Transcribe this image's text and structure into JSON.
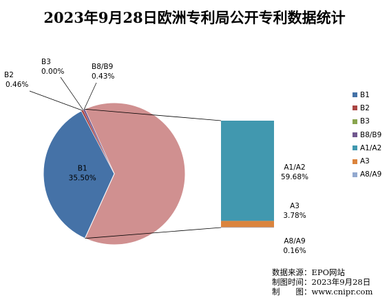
{
  "chart_data": {
    "type": "pie",
    "variant": "pie-of-bar",
    "title": "2023年9月28日欧洲专利局公开专利数据统计",
    "slices": [
      {
        "name": "B1",
        "value": 35.5,
        "label": "35.50%",
        "color": "#4572A7"
      },
      {
        "name": "B2",
        "value": 0.46,
        "label": "0.46%",
        "color": "#AA4643"
      },
      {
        "name": "B3",
        "value": 0.0,
        "label": "0.00%",
        "color": "#89A54E"
      },
      {
        "name": "B8/B9",
        "value": 0.43,
        "label": "0.43%",
        "color": "#71588F"
      }
    ],
    "grouped_slice": {
      "color": "#D09090"
    },
    "bar": [
      {
        "name": "A1/A2",
        "value": 59.68,
        "label": "59.68%",
        "color": "#4198AF"
      },
      {
        "name": "A3",
        "value": 3.78,
        "label": "3.78%",
        "color": "#DB843D"
      },
      {
        "name": "A8/A9",
        "value": 0.16,
        "label": "0.16%",
        "color": "#93A9CF"
      }
    ],
    "legend": {
      "position": "right",
      "items": [
        {
          "name": "B1",
          "color": "#4572A7"
        },
        {
          "name": "B2",
          "color": "#AA4643"
        },
        {
          "name": "B3",
          "color": "#89A54E"
        },
        {
          "name": "B8/B9",
          "color": "#71588F"
        },
        {
          "name": "A1/A2",
          "color": "#4198AF"
        },
        {
          "name": "A3",
          "color": "#DB843D"
        },
        {
          "name": "A8/A9",
          "color": "#93A9CF"
        }
      ]
    }
  },
  "source": {
    "line1": "数据来源：EPO网站",
    "line2": "制图时间：2023年9月28日",
    "line3": "制　　图：www.cnipr.com"
  }
}
